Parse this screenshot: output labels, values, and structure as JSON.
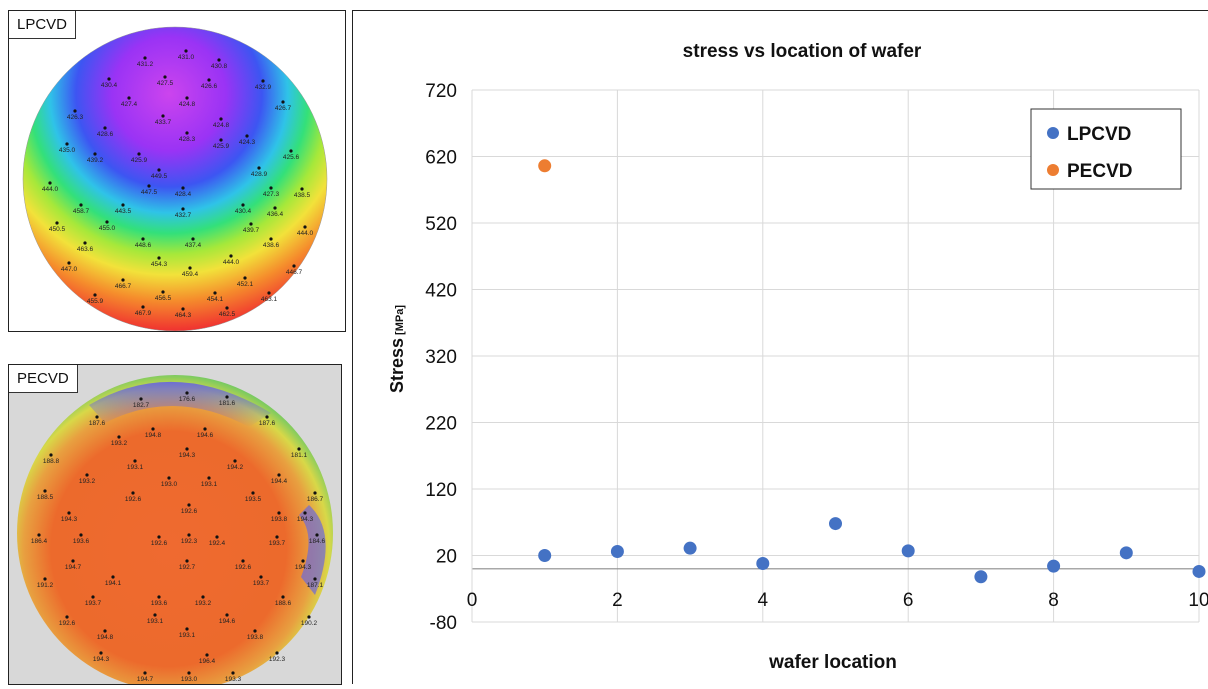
{
  "lpcvd_map": {
    "tag": "LPCVD",
    "points": [
      {
        "label": "431.0"
      },
      {
        "label": "431.2"
      },
      {
        "label": "430.8"
      },
      {
        "label": "430.4"
      },
      {
        "label": "427.5"
      },
      {
        "label": "426.6"
      },
      {
        "label": "432.9"
      },
      {
        "label": "427.4"
      },
      {
        "label": "424.8"
      },
      {
        "label": "426.7"
      },
      {
        "label": "433.7"
      },
      {
        "label": "424.8"
      },
      {
        "label": "426.3"
      },
      {
        "label": "428.6"
      },
      {
        "label": "428.3"
      },
      {
        "label": "425.9"
      },
      {
        "label": "424.3"
      },
      {
        "label": "435.0"
      },
      {
        "label": "439.2"
      },
      {
        "label": "425.9"
      },
      {
        "label": "425.6"
      },
      {
        "label": "449.5"
      },
      {
        "label": "428.9"
      },
      {
        "label": "444.0"
      },
      {
        "label": "447.5"
      },
      {
        "label": "428.4"
      },
      {
        "label": "427.3"
      },
      {
        "label": "438.5"
      },
      {
        "label": "458.7"
      },
      {
        "label": "443.5"
      },
      {
        "label": "432.7"
      },
      {
        "label": "430.4"
      },
      {
        "label": "436.4"
      },
      {
        "label": "450.5"
      },
      {
        "label": "455.0"
      },
      {
        "label": "439.7"
      },
      {
        "label": "444.0"
      },
      {
        "label": "463.6"
      },
      {
        "label": "448.6"
      },
      {
        "label": "437.4"
      },
      {
        "label": "438.6"
      },
      {
        "label": "454.3"
      },
      {
        "label": "444.0"
      },
      {
        "label": "447.0"
      },
      {
        "label": "459.4"
      },
      {
        "label": "446.7"
      },
      {
        "label": "466.7"
      },
      {
        "label": "452.1"
      },
      {
        "label": "456.5"
      },
      {
        "label": "454.1"
      },
      {
        "label": "455.9"
      },
      {
        "label": "463.1"
      },
      {
        "label": "467.9"
      },
      {
        "label": "464.3"
      },
      {
        "label": "462.5"
      },
      {
        "label": "466.3"
      }
    ]
  },
  "pecvd_map": {
    "tag": "PECVD",
    "points": [
      {
        "label": "176.6"
      },
      {
        "label": "182.7"
      },
      {
        "label": "181.6"
      },
      {
        "label": "187.6"
      },
      {
        "label": "194.8"
      },
      {
        "label": "194.6"
      },
      {
        "label": "187.6"
      },
      {
        "label": "193.2"
      },
      {
        "label": "194.3"
      },
      {
        "label": "181.1"
      },
      {
        "label": "188.8"
      },
      {
        "label": "193.1"
      },
      {
        "label": "194.2"
      },
      {
        "label": "193.2"
      },
      {
        "label": "193.0"
      },
      {
        "label": "193.1"
      },
      {
        "label": "194.4"
      },
      {
        "label": "188.5"
      },
      {
        "label": "192.6"
      },
      {
        "label": "193.5"
      },
      {
        "label": "186.7"
      },
      {
        "label": "194.3"
      },
      {
        "label": "192.6"
      },
      {
        "label": "193.8"
      },
      {
        "label": "194.3"
      },
      {
        "label": "186.4"
      },
      {
        "label": "193.6"
      },
      {
        "label": "192.6"
      },
      {
        "label": "192.3"
      },
      {
        "label": "192.4"
      },
      {
        "label": "193.7"
      },
      {
        "label": "184.6"
      },
      {
        "label": "194.7"
      },
      {
        "label": "192.7"
      },
      {
        "label": "192.6"
      },
      {
        "label": "194.3"
      },
      {
        "label": "191.2"
      },
      {
        "label": "194.1"
      },
      {
        "label": "193.7"
      },
      {
        "label": "187.1"
      },
      {
        "label": "193.7"
      },
      {
        "label": "193.6"
      },
      {
        "label": "193.2"
      },
      {
        "label": "188.6"
      },
      {
        "label": "192.6"
      },
      {
        "label": "193.1"
      },
      {
        "label": "194.6"
      },
      {
        "label": "190.2"
      },
      {
        "label": "194.8"
      },
      {
        "label": "193.1"
      },
      {
        "label": "193.8"
      },
      {
        "label": "194.3"
      },
      {
        "label": "196.4"
      },
      {
        "label": "192.3"
      },
      {
        "label": "194.7"
      },
      {
        "label": "193.0"
      },
      {
        "label": "193.3"
      }
    ]
  },
  "chart_data": {
    "type": "scatter",
    "title": "stress vs location of wafer",
    "xlabel": "wafer location",
    "ylabel": "Stress",
    "ylabel_unit": "[MPa]",
    "xlim": [
      0,
      10
    ],
    "ylim": [
      -80,
      720
    ],
    "xticks": [
      "0",
      "2",
      "4",
      "6",
      "8",
      "10"
    ],
    "yticks": [
      "720",
      "620",
      "520",
      "420",
      "320",
      "220",
      "120",
      "20",
      "-80"
    ],
    "grid": true,
    "legend": "top-right",
    "series": [
      {
        "name": "LPCVD",
        "color": "#4472c4",
        "points": [
          [
            1,
            20
          ],
          [
            2,
            26
          ],
          [
            3,
            31
          ],
          [
            4,
            8
          ],
          [
            5,
            68
          ],
          [
            6,
            27
          ],
          [
            7,
            -12
          ],
          [
            8,
            4
          ],
          [
            9,
            24
          ],
          [
            10,
            -4
          ]
        ]
      },
      {
        "name": "PECVD",
        "color": "#ed7d31",
        "points": [
          [
            1,
            606
          ]
        ]
      }
    ]
  }
}
